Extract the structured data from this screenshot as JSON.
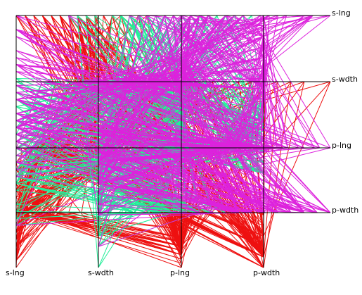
{
  "chart_data": {
    "type": "scatter-matrix-projection",
    "variables": [
      "s-lng",
      "s-wdth",
      "p-lng",
      "p-wdth"
    ],
    "right_labels": [
      "s-lng",
      "s-wdth",
      "p-lng",
      "p-wdth"
    ],
    "bottom_labels": [
      "s-lng",
      "s-wdth",
      "p-lng",
      "p-wdth"
    ],
    "series": [
      {
        "color": "#ee1111",
        "points": [
          [
            5.1,
            3.5,
            1.4,
            0.2
          ],
          [
            4.9,
            3.0,
            1.4,
            0.2
          ],
          [
            4.7,
            3.2,
            1.3,
            0.2
          ],
          [
            4.6,
            3.1,
            1.5,
            0.2
          ],
          [
            5.0,
            3.6,
            1.4,
            0.2
          ],
          [
            5.4,
            3.9,
            1.7,
            0.4
          ],
          [
            4.6,
            3.4,
            1.4,
            0.3
          ],
          [
            5.0,
            3.4,
            1.5,
            0.2
          ],
          [
            4.4,
            2.9,
            1.4,
            0.2
          ],
          [
            4.9,
            3.1,
            1.5,
            0.1
          ],
          [
            5.4,
            3.7,
            1.5,
            0.2
          ],
          [
            4.8,
            3.4,
            1.6,
            0.2
          ],
          [
            4.8,
            3.0,
            1.4,
            0.1
          ],
          [
            4.3,
            3.0,
            1.1,
            0.1
          ],
          [
            5.8,
            4.0,
            1.2,
            0.2
          ],
          [
            5.7,
            4.4,
            1.5,
            0.4
          ],
          [
            5.4,
            3.9,
            1.3,
            0.4
          ],
          [
            5.1,
            3.5,
            1.4,
            0.3
          ],
          [
            5.7,
            3.8,
            1.7,
            0.3
          ],
          [
            5.1,
            3.8,
            1.5,
            0.3
          ],
          [
            5.4,
            3.4,
            1.7,
            0.2
          ],
          [
            5.1,
            3.7,
            1.5,
            0.4
          ],
          [
            4.6,
            3.6,
            1.0,
            0.2
          ],
          [
            5.1,
            3.3,
            1.7,
            0.5
          ],
          [
            4.8,
            3.4,
            1.9,
            0.2
          ],
          [
            5.0,
            3.0,
            1.6,
            0.2
          ],
          [
            5.0,
            3.4,
            1.6,
            0.4
          ],
          [
            5.2,
            3.5,
            1.5,
            0.2
          ],
          [
            5.2,
            3.4,
            1.4,
            0.2
          ],
          [
            4.7,
            3.2,
            1.6,
            0.2
          ],
          [
            4.8,
            3.1,
            1.6,
            0.2
          ],
          [
            5.4,
            3.4,
            1.5,
            0.4
          ],
          [
            5.2,
            4.1,
            1.5,
            0.1
          ],
          [
            5.5,
            4.2,
            1.4,
            0.2
          ],
          [
            4.9,
            3.1,
            1.5,
            0.2
          ],
          [
            5.0,
            3.2,
            1.2,
            0.2
          ],
          [
            5.5,
            3.5,
            1.3,
            0.2
          ],
          [
            4.9,
            3.6,
            1.4,
            0.1
          ],
          [
            4.4,
            3.0,
            1.3,
            0.2
          ],
          [
            5.1,
            3.4,
            1.5,
            0.2
          ],
          [
            5.0,
            3.5,
            1.3,
            0.3
          ],
          [
            4.5,
            2.3,
            1.3,
            0.3
          ],
          [
            4.4,
            3.2,
            1.3,
            0.2
          ],
          [
            5.0,
            3.5,
            1.6,
            0.6
          ],
          [
            5.1,
            3.8,
            1.9,
            0.4
          ],
          [
            4.8,
            3.0,
            1.4,
            0.3
          ],
          [
            5.1,
            3.8,
            1.6,
            0.2
          ],
          [
            4.6,
            3.2,
            1.4,
            0.2
          ],
          [
            5.3,
            3.7,
            1.5,
            0.2
          ],
          [
            5.0,
            3.3,
            1.4,
            0.2
          ]
        ]
      },
      {
        "color": "#22ee99",
        "points": [
          [
            7.0,
            3.2,
            4.7,
            1.4
          ],
          [
            6.4,
            3.2,
            4.5,
            1.5
          ],
          [
            6.9,
            3.1,
            4.9,
            1.5
          ],
          [
            5.5,
            2.3,
            4.0,
            1.3
          ],
          [
            6.5,
            2.8,
            4.6,
            1.5
          ],
          [
            5.7,
            2.8,
            4.5,
            1.3
          ],
          [
            6.3,
            3.3,
            4.7,
            1.6
          ],
          [
            4.9,
            2.4,
            3.3,
            1.0
          ],
          [
            6.6,
            2.9,
            4.6,
            1.3
          ],
          [
            5.2,
            2.7,
            3.9,
            1.4
          ],
          [
            5.0,
            2.0,
            3.5,
            1.0
          ],
          [
            5.9,
            3.0,
            4.2,
            1.5
          ],
          [
            6.0,
            2.2,
            4.0,
            1.0
          ],
          [
            6.1,
            2.9,
            4.7,
            1.4
          ],
          [
            5.6,
            2.9,
            3.6,
            1.3
          ],
          [
            6.7,
            3.1,
            4.4,
            1.4
          ],
          [
            5.6,
            3.0,
            4.5,
            1.5
          ],
          [
            5.8,
            2.7,
            4.1,
            1.0
          ],
          [
            6.2,
            2.2,
            4.5,
            1.5
          ],
          [
            5.6,
            2.5,
            3.9,
            1.1
          ],
          [
            5.9,
            3.2,
            4.8,
            1.8
          ],
          [
            6.1,
            2.8,
            4.0,
            1.3
          ],
          [
            6.3,
            2.5,
            4.9,
            1.5
          ],
          [
            6.1,
            2.8,
            4.7,
            1.2
          ],
          [
            6.4,
            2.9,
            4.3,
            1.3
          ],
          [
            6.6,
            3.0,
            4.4,
            1.4
          ],
          [
            6.8,
            2.8,
            4.8,
            1.4
          ],
          [
            6.7,
            3.0,
            5.0,
            1.7
          ],
          [
            6.0,
            2.9,
            4.5,
            1.5
          ],
          [
            5.7,
            2.6,
            3.5,
            1.0
          ],
          [
            5.5,
            2.4,
            3.8,
            1.1
          ],
          [
            5.5,
            2.4,
            3.7,
            1.0
          ],
          [
            5.8,
            2.7,
            3.9,
            1.2
          ],
          [
            6.0,
            2.7,
            5.1,
            1.6
          ],
          [
            5.4,
            3.0,
            4.5,
            1.5
          ],
          [
            6.0,
            3.4,
            4.5,
            1.6
          ],
          [
            6.7,
            3.1,
            4.7,
            1.5
          ],
          [
            6.3,
            2.3,
            4.4,
            1.3
          ],
          [
            5.6,
            3.0,
            4.1,
            1.3
          ],
          [
            5.5,
            2.5,
            4.0,
            1.3
          ],
          [
            5.5,
            2.6,
            4.4,
            1.2
          ],
          [
            6.1,
            3.0,
            4.6,
            1.4
          ],
          [
            5.8,
            2.6,
            4.0,
            1.2
          ],
          [
            5.0,
            2.3,
            3.3,
            1.0
          ],
          [
            5.6,
            2.7,
            4.2,
            1.3
          ],
          [
            5.7,
            3.0,
            4.2,
            1.2
          ],
          [
            5.7,
            2.9,
            4.2,
            1.3
          ],
          [
            6.2,
            2.9,
            4.3,
            1.3
          ],
          [
            5.1,
            2.5,
            3.0,
            1.1
          ],
          [
            5.7,
            2.8,
            4.1,
            1.3
          ]
        ]
      },
      {
        "color": "#dd22dd",
        "points": [
          [
            6.3,
            3.3,
            6.0,
            2.5
          ],
          [
            5.8,
            2.7,
            5.1,
            1.9
          ],
          [
            7.1,
            3.0,
            5.9,
            2.1
          ],
          [
            6.3,
            2.9,
            5.6,
            1.8
          ],
          [
            6.5,
            3.0,
            5.8,
            2.2
          ],
          [
            7.6,
            3.0,
            6.6,
            2.1
          ],
          [
            4.9,
            2.5,
            4.5,
            1.7
          ],
          [
            7.3,
            2.9,
            6.3,
            1.8
          ],
          [
            6.7,
            2.5,
            5.8,
            1.8
          ],
          [
            7.2,
            3.6,
            6.1,
            2.5
          ],
          [
            6.5,
            3.2,
            5.1,
            2.0
          ],
          [
            6.4,
            2.7,
            5.3,
            1.9
          ],
          [
            6.8,
            3.0,
            5.5,
            2.1
          ],
          [
            5.7,
            2.5,
            5.0,
            2.0
          ],
          [
            5.8,
            2.8,
            5.1,
            2.4
          ],
          [
            6.4,
            3.2,
            5.3,
            2.3
          ],
          [
            6.5,
            3.0,
            5.5,
            1.8
          ],
          [
            7.7,
            3.8,
            6.7,
            2.2
          ],
          [
            7.7,
            2.6,
            6.9,
            2.3
          ],
          [
            6.0,
            2.2,
            5.0,
            1.5
          ],
          [
            6.9,
            3.2,
            5.7,
            2.3
          ],
          [
            5.6,
            2.8,
            4.9,
            2.0
          ],
          [
            7.7,
            2.8,
            6.7,
            2.0
          ],
          [
            6.3,
            2.7,
            4.9,
            1.8
          ],
          [
            6.7,
            3.3,
            5.7,
            2.1
          ],
          [
            7.2,
            3.2,
            6.0,
            1.8
          ],
          [
            6.2,
            2.8,
            4.8,
            1.8
          ],
          [
            6.1,
            3.0,
            4.9,
            1.8
          ],
          [
            6.4,
            2.8,
            5.6,
            2.1
          ],
          [
            7.2,
            3.0,
            5.8,
            1.6
          ],
          [
            7.4,
            2.8,
            6.1,
            1.9
          ],
          [
            7.9,
            3.8,
            6.4,
            2.0
          ],
          [
            6.4,
            2.8,
            5.6,
            2.2
          ],
          [
            6.3,
            2.8,
            5.1,
            1.5
          ],
          [
            6.1,
            2.6,
            5.6,
            1.4
          ],
          [
            7.7,
            3.0,
            6.1,
            2.3
          ],
          [
            6.3,
            3.4,
            5.6,
            2.4
          ],
          [
            6.4,
            3.1,
            5.5,
            1.8
          ],
          [
            6.0,
            3.0,
            4.8,
            1.8
          ],
          [
            6.9,
            3.1,
            5.4,
            2.1
          ],
          [
            6.7,
            3.1,
            5.6,
            2.4
          ],
          [
            6.9,
            3.1,
            5.1,
            2.3
          ],
          [
            5.8,
            2.7,
            5.1,
            1.9
          ],
          [
            6.8,
            3.2,
            5.9,
            2.3
          ],
          [
            6.7,
            3.3,
            5.7,
            2.5
          ],
          [
            6.7,
            3.0,
            5.2,
            2.3
          ],
          [
            6.3,
            2.5,
            5.0,
            1.9
          ],
          [
            6.5,
            3.0,
            5.2,
            2.0
          ],
          [
            6.2,
            3.4,
            5.4,
            2.3
          ],
          [
            5.9,
            3.0,
            5.1,
            1.8
          ]
        ]
      }
    ]
  }
}
